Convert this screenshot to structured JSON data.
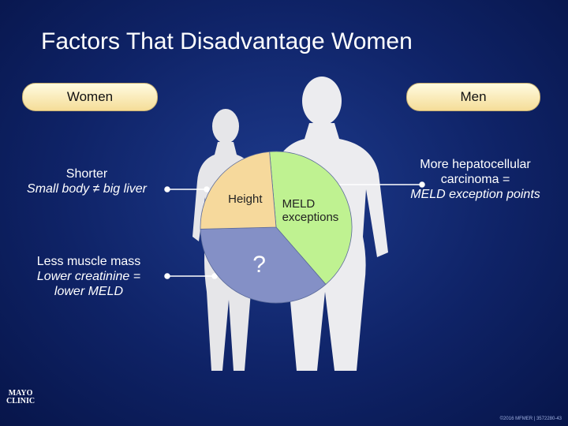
{
  "title": "Factors That Disadvantage Women",
  "pills": [
    "Women",
    "Men"
  ],
  "left_notes": [
    {
      "lines": [
        "Shorter",
        "Small body ≠ big liver"
      ]
    },
    {
      "lines": [
        "Less muscle mass",
        "Lower creatinine =",
        "lower MELD"
      ]
    }
  ],
  "right_note": {
    "lines": [
      "More hepatocellular",
      "carcinoma =",
      "MELD exception points"
    ]
  },
  "chart_data": {
    "type": "pie",
    "categories": [
      "MELD exceptions",
      "?",
      "Height"
    ],
    "values": [
      40,
      36,
      24
    ],
    "colors": [
      "#bff291",
      "#8490c6",
      "#f6d99c"
    ]
  },
  "logo": [
    "MAYO",
    "CLINIC"
  ],
  "footer": "©2016 MFMER | 3572280-43"
}
